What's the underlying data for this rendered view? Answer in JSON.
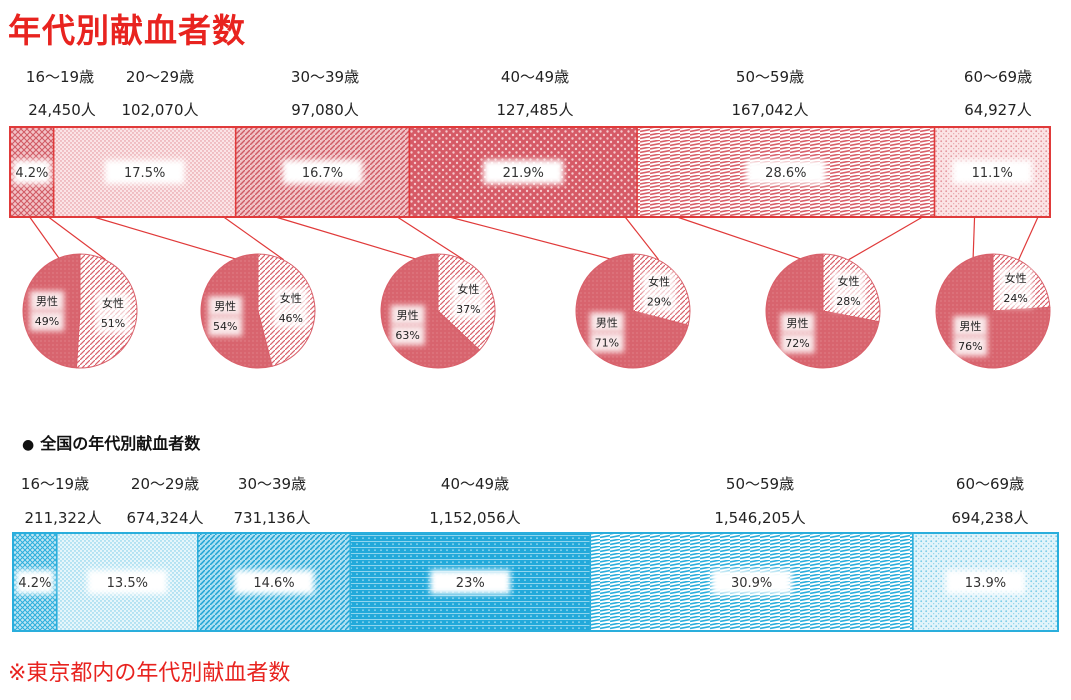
{
  "title": "年代別献血者数",
  "national_heading": "全国の年代別献血者数",
  "footnote": "※東京都内の年代別献血者数",
  "colors": {
    "title_red": "#e8231f",
    "tokyo_fill": "#d9606a",
    "tokyo_border": "#e03a3a",
    "national_fill": "#2aaedc",
    "national_border": "#2aaedc",
    "text": "#222222"
  },
  "chart_data": [
    {
      "type": "bar",
      "subtype": "100% stacked horizontal bar",
      "region": "東京都内",
      "categories": [
        "16～19歳",
        "20～29歳",
        "30～39歳",
        "40～49歳",
        "50～59歳",
        "60～69歳"
      ],
      "counts": [
        "24,450人",
        "102,070人",
        "97,080人",
        "127,485人",
        "167,042人",
        "64,927人"
      ],
      "values": [
        4.2,
        17.5,
        16.7,
        21.9,
        28.6,
        11.1
      ],
      "value_labels": [
        "4.2%",
        "17.5%",
        "16.7%",
        "21.9%",
        "28.6%",
        "11.1%"
      ]
    },
    {
      "type": "pie",
      "region": "東京都内",
      "description": "gender split per age group",
      "categories": [
        "16～19歳",
        "20～29歳",
        "30～39歳",
        "40～49歳",
        "50～59歳",
        "60～69歳"
      ],
      "series_labels": {
        "male": "男性",
        "female": "女性"
      },
      "male": [
        49,
        54,
        63,
        71,
        72,
        76
      ],
      "female": [
        51,
        46,
        37,
        29,
        28,
        24
      ],
      "male_labels": [
        "49%",
        "54%",
        "63%",
        "71%",
        "72%",
        "76%"
      ],
      "female_labels": [
        "51%",
        "46%",
        "37%",
        "29%",
        "28%",
        "24%"
      ]
    },
    {
      "type": "bar",
      "subtype": "100% stacked horizontal bar",
      "region": "全国",
      "categories": [
        "16～19歳",
        "20～29歳",
        "30～39歳",
        "40～49歳",
        "50～59歳",
        "60～69歳"
      ],
      "counts": [
        "211,322人",
        "674,324人",
        "731,136人",
        "1,152,056人",
        "1,546,205人",
        "694,238人"
      ],
      "values": [
        4.2,
        13.5,
        14.6,
        23,
        30.9,
        13.9
      ],
      "value_labels": [
        "4.2%",
        "13.5%",
        "14.6%",
        "23%",
        "30.9%",
        "13.9%"
      ]
    }
  ]
}
